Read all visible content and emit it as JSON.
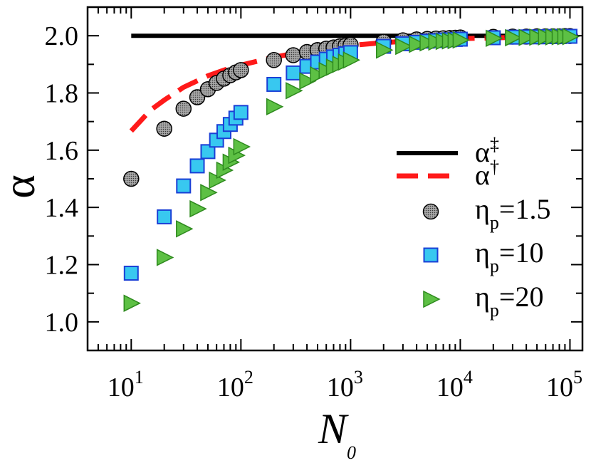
{
  "chart_data": {
    "type": "scatter",
    "xscale": "log",
    "xlim": [
      4,
      130000
    ],
    "ylim": [
      0.9,
      2.1
    ],
    "xlabel": {
      "main": "N",
      "sub": "0"
    },
    "ylabel": "α",
    "xticks": [
      {
        "value": 10,
        "base": "10",
        "exp": "1"
      },
      {
        "value": 100,
        "base": "10",
        "exp": "2"
      },
      {
        "value": 1000,
        "base": "10",
        "exp": "3"
      },
      {
        "value": 10000,
        "base": "10",
        "exp": "4"
      },
      {
        "value": 100000,
        "base": "10",
        "exp": "5"
      }
    ],
    "yticks": [
      {
        "value": 1.0,
        "label": "1.0"
      },
      {
        "value": 1.2,
        "label": "1.2"
      },
      {
        "value": 1.4,
        "label": "1.4"
      },
      {
        "value": 1.6,
        "label": "1.6"
      },
      {
        "value": 1.8,
        "label": "1.8"
      },
      {
        "value": 2.0,
        "label": "2.0"
      }
    ],
    "lines": [
      {
        "name": "alpha-double-dagger",
        "legend_main": "α",
        "legend_sup": "‡",
        "color": "#000000",
        "dashed": false,
        "x": [
          10,
          100000
        ],
        "y": [
          2.0,
          2.0
        ]
      },
      {
        "name": "alpha-dagger",
        "legend_main": "α",
        "legend_sup": "†",
        "color": "#ff1a1a",
        "dashed": true,
        "x": [
          10,
          15,
          20,
          30,
          50,
          70,
          100,
          200,
          300,
          500,
          1000,
          2000,
          5000,
          10000,
          30000,
          100000
        ],
        "y": [
          1.667,
          1.74,
          1.775,
          1.82,
          1.86,
          1.88,
          1.897,
          1.925,
          1.938,
          1.952,
          1.966,
          1.976,
          1.985,
          1.99,
          1.994,
          1.997
        ]
      }
    ],
    "series": [
      {
        "name": "eta-p-1.5",
        "legend_main": "η",
        "legend_sub": "p",
        "legend_value": "=1.5",
        "marker": "circle",
        "color": "#8c8c8c",
        "x": [
          10,
          20,
          30,
          40,
          50,
          60,
          70,
          80,
          90,
          100,
          200,
          300,
          400,
          500,
          600,
          700,
          800,
          900,
          1000,
          2000,
          3000,
          4000,
          5000,
          6000,
          7000,
          8000,
          9000,
          10000,
          20000,
          30000,
          40000,
          50000,
          60000,
          70000,
          80000,
          90000,
          100000
        ],
        "y": [
          1.5,
          1.675,
          1.745,
          1.785,
          1.813,
          1.835,
          1.85,
          1.862,
          1.872,
          1.88,
          1.915,
          1.932,
          1.943,
          1.95,
          1.955,
          1.959,
          1.963,
          1.966,
          1.968,
          1.979,
          1.984,
          1.987,
          1.989,
          1.99,
          1.991,
          1.992,
          1.993,
          1.994,
          1.996,
          1.997,
          1.997,
          1.998,
          1.998,
          1.998,
          1.998,
          1.999,
          1.999
        ]
      },
      {
        "name": "eta-p-10",
        "legend_main": "η",
        "legend_sub": "p",
        "legend_value": "=10",
        "marker": "square",
        "color": "#38c8f0",
        "x": [
          10,
          20,
          30,
          40,
          50,
          60,
          70,
          80,
          90,
          100,
          200,
          300,
          400,
          500,
          600,
          700,
          800,
          900,
          1000,
          2000,
          3000,
          4000,
          5000,
          6000,
          7000,
          8000,
          9000,
          10000,
          20000,
          30000,
          40000,
          50000,
          60000,
          70000,
          80000,
          90000,
          100000
        ],
        "y": [
          1.17,
          1.367,
          1.475,
          1.545,
          1.595,
          1.635,
          1.665,
          1.69,
          1.712,
          1.732,
          1.83,
          1.87,
          1.893,
          1.908,
          1.918,
          1.926,
          1.932,
          1.937,
          1.941,
          1.963,
          1.972,
          1.977,
          1.981,
          1.983,
          1.985,
          1.986,
          1.987,
          1.988,
          1.993,
          1.995,
          1.996,
          1.996,
          1.997,
          1.997,
          1.997,
          1.998,
          1.998
        ]
      },
      {
        "name": "eta-p-20",
        "legend_main": "η",
        "legend_sub": "p",
        "legend_value": "=20",
        "marker": "triangle",
        "color": "#5dc044",
        "x": [
          10,
          20,
          30,
          40,
          50,
          60,
          70,
          80,
          90,
          100,
          200,
          300,
          400,
          500,
          600,
          700,
          800,
          900,
          1000,
          2000,
          3000,
          4000,
          5000,
          6000,
          7000,
          8000,
          9000,
          10000,
          20000,
          30000,
          40000,
          50000,
          60000,
          70000,
          80000,
          90000,
          100000
        ],
        "y": [
          1.065,
          1.225,
          1.325,
          1.395,
          1.452,
          1.495,
          1.53,
          1.558,
          1.582,
          1.612,
          1.752,
          1.808,
          1.842,
          1.863,
          1.878,
          1.89,
          1.9,
          1.908,
          1.915,
          1.95,
          1.963,
          1.97,
          1.975,
          1.978,
          1.98,
          1.982,
          1.983,
          1.985,
          1.991,
          1.993,
          1.994,
          1.995,
          1.996,
          1.996,
          1.997,
          1.997,
          1.997
        ]
      }
    ],
    "legend_position": "right"
  }
}
